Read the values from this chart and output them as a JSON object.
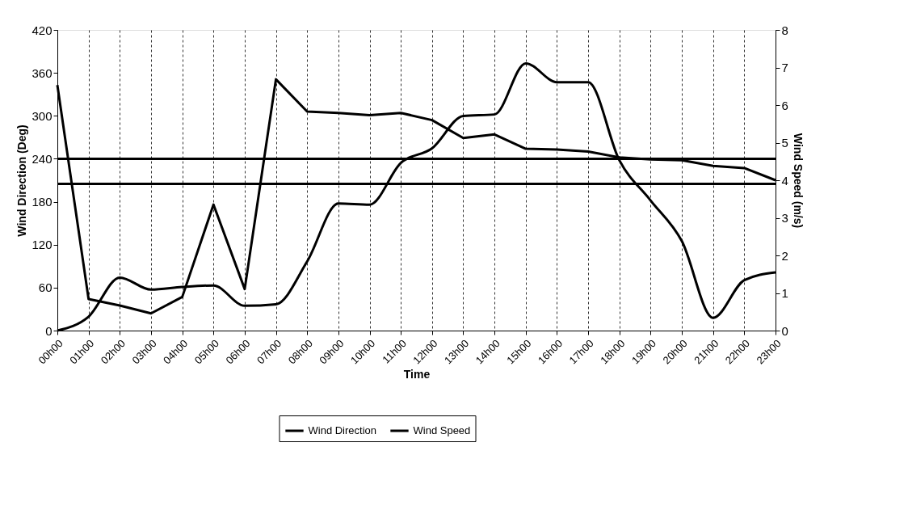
{
  "chart_data": {
    "type": "line",
    "xlabel": "Time",
    "ylabel": "Wind Direction (Deg)",
    "y2label": "Wind Speed (m/s)",
    "categories": [
      "00h00",
      "01h00",
      "02h00",
      "03h00",
      "04h00",
      "05h00",
      "06h00",
      "07h00",
      "08h00",
      "09h00",
      "10h00",
      "11h00",
      "12h00",
      "13h00",
      "14h00",
      "15h00",
      "16h00",
      "17h00",
      "18h00",
      "19h00",
      "20h00",
      "21h00",
      "22h00",
      "23h00"
    ],
    "series": [
      {
        "name": "Wind Direction",
        "color": "#000000",
        "values": [
          343,
          44,
          35,
          24,
          47,
          176,
          58,
          351,
          306,
          304,
          301,
          304,
          294,
          269,
          274,
          254,
          253,
          250,
          242,
          239,
          238,
          230,
          227,
          210
        ]
      },
      {
        "name": "Wind Speed",
        "color": "#000000",
        "axis": "y2",
        "values": [
          0.0,
          0.37,
          1.41,
          1.09,
          1.16,
          1.2,
          0.66,
          0.7,
          1.84,
          3.38,
          3.35,
          4.46,
          4.85,
          5.71,
          5.75,
          7.11,
          6.61,
          6.61,
          4.53,
          3.46,
          2.38,
          0.34,
          1.34,
          1.55
        ]
      }
    ],
    "ylim": [
      0,
      420
    ],
    "yticks": [
      0,
      60,
      120,
      180,
      240,
      300,
      360,
      420
    ],
    "y2lim": [
      0,
      8
    ],
    "y2ticks": [
      0,
      1,
      2,
      3,
      4,
      5,
      6,
      7,
      8
    ],
    "ref_lines": [
      {
        "axis": "y",
        "value": 240,
        "color": "#000000"
      },
      {
        "axis": "y",
        "value": 205,
        "color": "#000000"
      }
    ],
    "grid": "x",
    "legend": "bottom"
  }
}
